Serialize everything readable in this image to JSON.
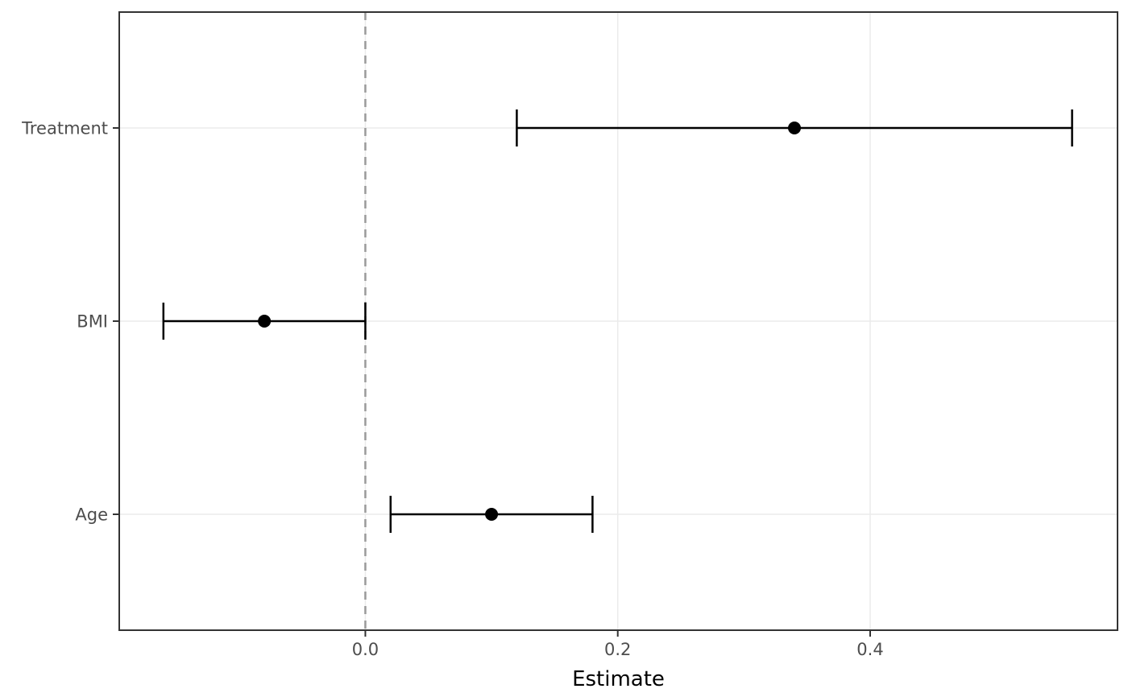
{
  "chart_data": {
    "type": "scatter",
    "variant": "forest-plot-errorbar",
    "title": "",
    "xlabel": "Estimate",
    "ylabel": "",
    "categories": [
      "Treatment",
      "BMI",
      "Age"
    ],
    "series": [
      {
        "term": "Treatment",
        "estimate": 0.34,
        "conf_low": 0.12,
        "conf_high": 0.56
      },
      {
        "term": "BMI",
        "estimate": -0.08,
        "conf_low": -0.16,
        "conf_high": 0.0
      },
      {
        "term": "Age",
        "estimate": 0.1,
        "conf_low": 0.02,
        "conf_high": 0.18
      }
    ],
    "x_ticks": [
      0.0,
      0.2,
      0.4
    ],
    "x_tick_labels": [
      "0.0",
      "0.2",
      "0.4"
    ],
    "xlim": [
      -0.195,
      0.596
    ],
    "reference_line_x": 0,
    "grid": "major-only",
    "legend_position": "none"
  },
  "style": {
    "background_color": "#ffffff",
    "panel_background_color": "#ffffff",
    "panel_border_color": "#333333",
    "grid_color": "#ebebeb",
    "axis_text_color": "#4d4d4d",
    "axis_title_color": "#000000",
    "marker_color": "#000000",
    "errorbar_color": "#000000",
    "reference_line_color": "#9a9a9a",
    "tick_mark_color": "#333333"
  }
}
